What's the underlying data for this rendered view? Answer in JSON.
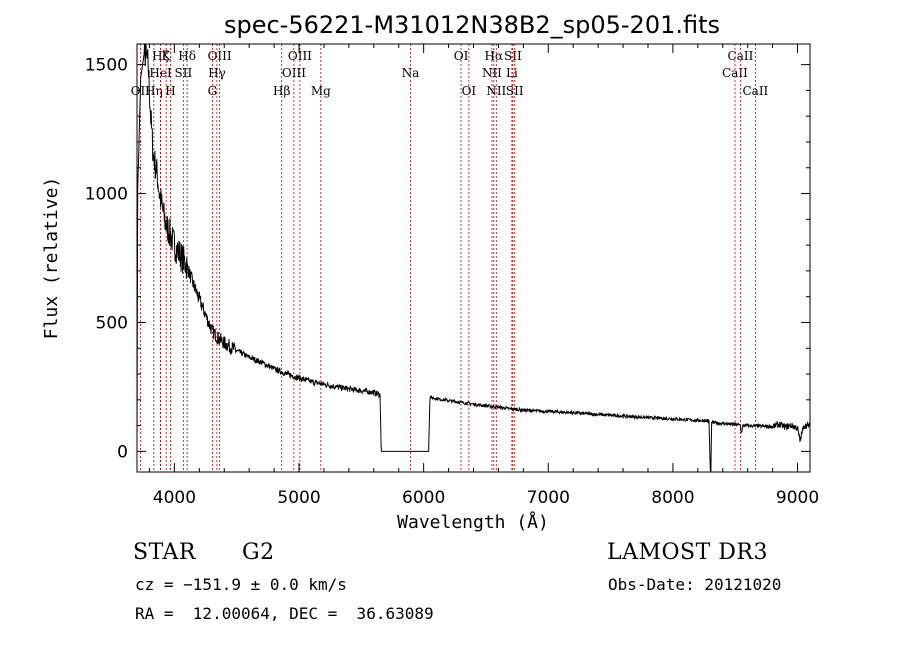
{
  "chart_data": {
    "type": "line",
    "title": "spec-56221-M31012N38B2_sp05-201.fits",
    "xlabel": "Wavelength (Å)",
    "ylabel": "Flux (relative)",
    "xlim": [
      3700,
      9100
    ],
    "ylim": [
      -80,
      1580
    ],
    "x_ticks": [
      4000,
      5000,
      6000,
      7000,
      8000,
      9000
    ],
    "y_ticks": [
      0,
      500,
      1000,
      1500
    ],
    "x_tick_labels": [
      "4000",
      "5000",
      "6000",
      "7000",
      "8000",
      "9000"
    ],
    "y_tick_labels": [
      "0",
      "500",
      "1000",
      "1500"
    ],
    "spectrum_anchors": {
      "x": [
        3700,
        3705,
        3730,
        3760,
        3790,
        3810,
        3830,
        3860,
        3880,
        3900,
        3930,
        3960,
        4000,
        4050,
        4100,
        4150,
        4200,
        4250,
        4300,
        4350,
        4400,
        4500,
        4600,
        4700,
        4800,
        4900,
        5000,
        5100,
        5200,
        5300,
        5400,
        5500,
        5600,
        5650,
        5660,
        6040,
        6050,
        6100,
        6200,
        6300,
        6400,
        6500,
        6600,
        6700,
        6800,
        6900,
        7000,
        7200,
        7400,
        7600,
        7800,
        8000,
        8200,
        8290,
        8300,
        8305,
        8310,
        8320,
        8400,
        8500,
        8540,
        8550,
        8560,
        8600,
        8700,
        8800,
        8850,
        8900,
        8950,
        9000,
        9020,
        9050,
        9100
      ],
      "y": [
        0,
        1000,
        1450,
        1550,
        1500,
        1300,
        1150,
        1080,
        1000,
        950,
        880,
        850,
        800,
        760,
        720,
        650,
        590,
        530,
        470,
        440,
        420,
        390,
        365,
        345,
        320,
        300,
        285,
        270,
        260,
        250,
        242,
        235,
        228,
        220,
        0,
        0,
        210,
        205,
        197,
        190,
        183,
        177,
        171,
        165,
        160,
        157,
        155,
        150,
        143,
        137,
        131,
        126,
        120,
        118,
        -80,
        -80,
        110,
        112,
        108,
        104,
        102,
        70,
        100,
        100,
        98,
        96,
        105,
        95,
        100,
        90,
        40,
        100,
        100
      ]
    },
    "spectral_lines": [
      {
        "name": "OII",
        "wavelength": 3727,
        "row": 2
      },
      {
        "name": "Hη",
        "wavelength": 3835,
        "row": 2
      },
      {
        "name": "Hζ",
        "wavelength": 3889,
        "row": 0
      },
      {
        "name": "HeI",
        "wavelength": 3889,
        "row": 1
      },
      {
        "name": "K",
        "wavelength": 3934,
        "row": 0
      },
      {
        "name": "H",
        "wavelength": 3969,
        "row": 2
      },
      {
        "name": "SII",
        "wavelength": 4072,
        "row": 1
      },
      {
        "name": "Hδ",
        "wavelength": 4102,
        "row": 0
      },
      {
        "name": "G",
        "wavelength": 4305,
        "row": 2
      },
      {
        "name": "OIII",
        "wavelength": 4363,
        "row": 0
      },
      {
        "name": "Hγ",
        "wavelength": 4341,
        "row": 1
      },
      {
        "name": "Hβ",
        "wavelength": 4861,
        "row": 2
      },
      {
        "name": "OIII",
        "wavelength": 4959,
        "row": 1
      },
      {
        "name": "OIII",
        "wavelength": 5007,
        "row": 0
      },
      {
        "name": "Mg",
        "wavelength": 5175,
        "row": 2
      },
      {
        "name": "Na",
        "wavelength": 5894,
        "row": 1
      },
      {
        "name": "OI",
        "wavelength": 6300,
        "row": 0
      },
      {
        "name": "OI",
        "wavelength": 6363,
        "row": 2
      },
      {
        "name": "NII",
        "wavelength": 6548,
        "row": 1
      },
      {
        "name": "Hα",
        "wavelength": 6563,
        "row": 0
      },
      {
        "name": "NII",
        "wavelength": 6583,
        "row": 2
      },
      {
        "name": "SII",
        "wavelength": 6716,
        "row": 0
      },
      {
        "name": "Li",
        "wavelength": 6708,
        "row": 1
      },
      {
        "name": "SII",
        "wavelength": 6731,
        "row": 2
      },
      {
        "name": "CaII",
        "wavelength": 8498,
        "row": 1
      },
      {
        "name": "CaII",
        "wavelength": 8542,
        "row": 0
      },
      {
        "name": "CaII",
        "wavelength": 8662,
        "row": 2
      }
    ],
    "line_color": "#c00000",
    "spectrum_color": "#000000"
  },
  "info": {
    "object_class": "STAR",
    "subclass": "G2",
    "survey": "LAMOST DR3",
    "redshift": "cz = −151.9 ± 0.0 km/s",
    "obs_date": "Obs-Date: 20121020",
    "coords": "RA =  12.00064, DEC =  36.63089"
  }
}
